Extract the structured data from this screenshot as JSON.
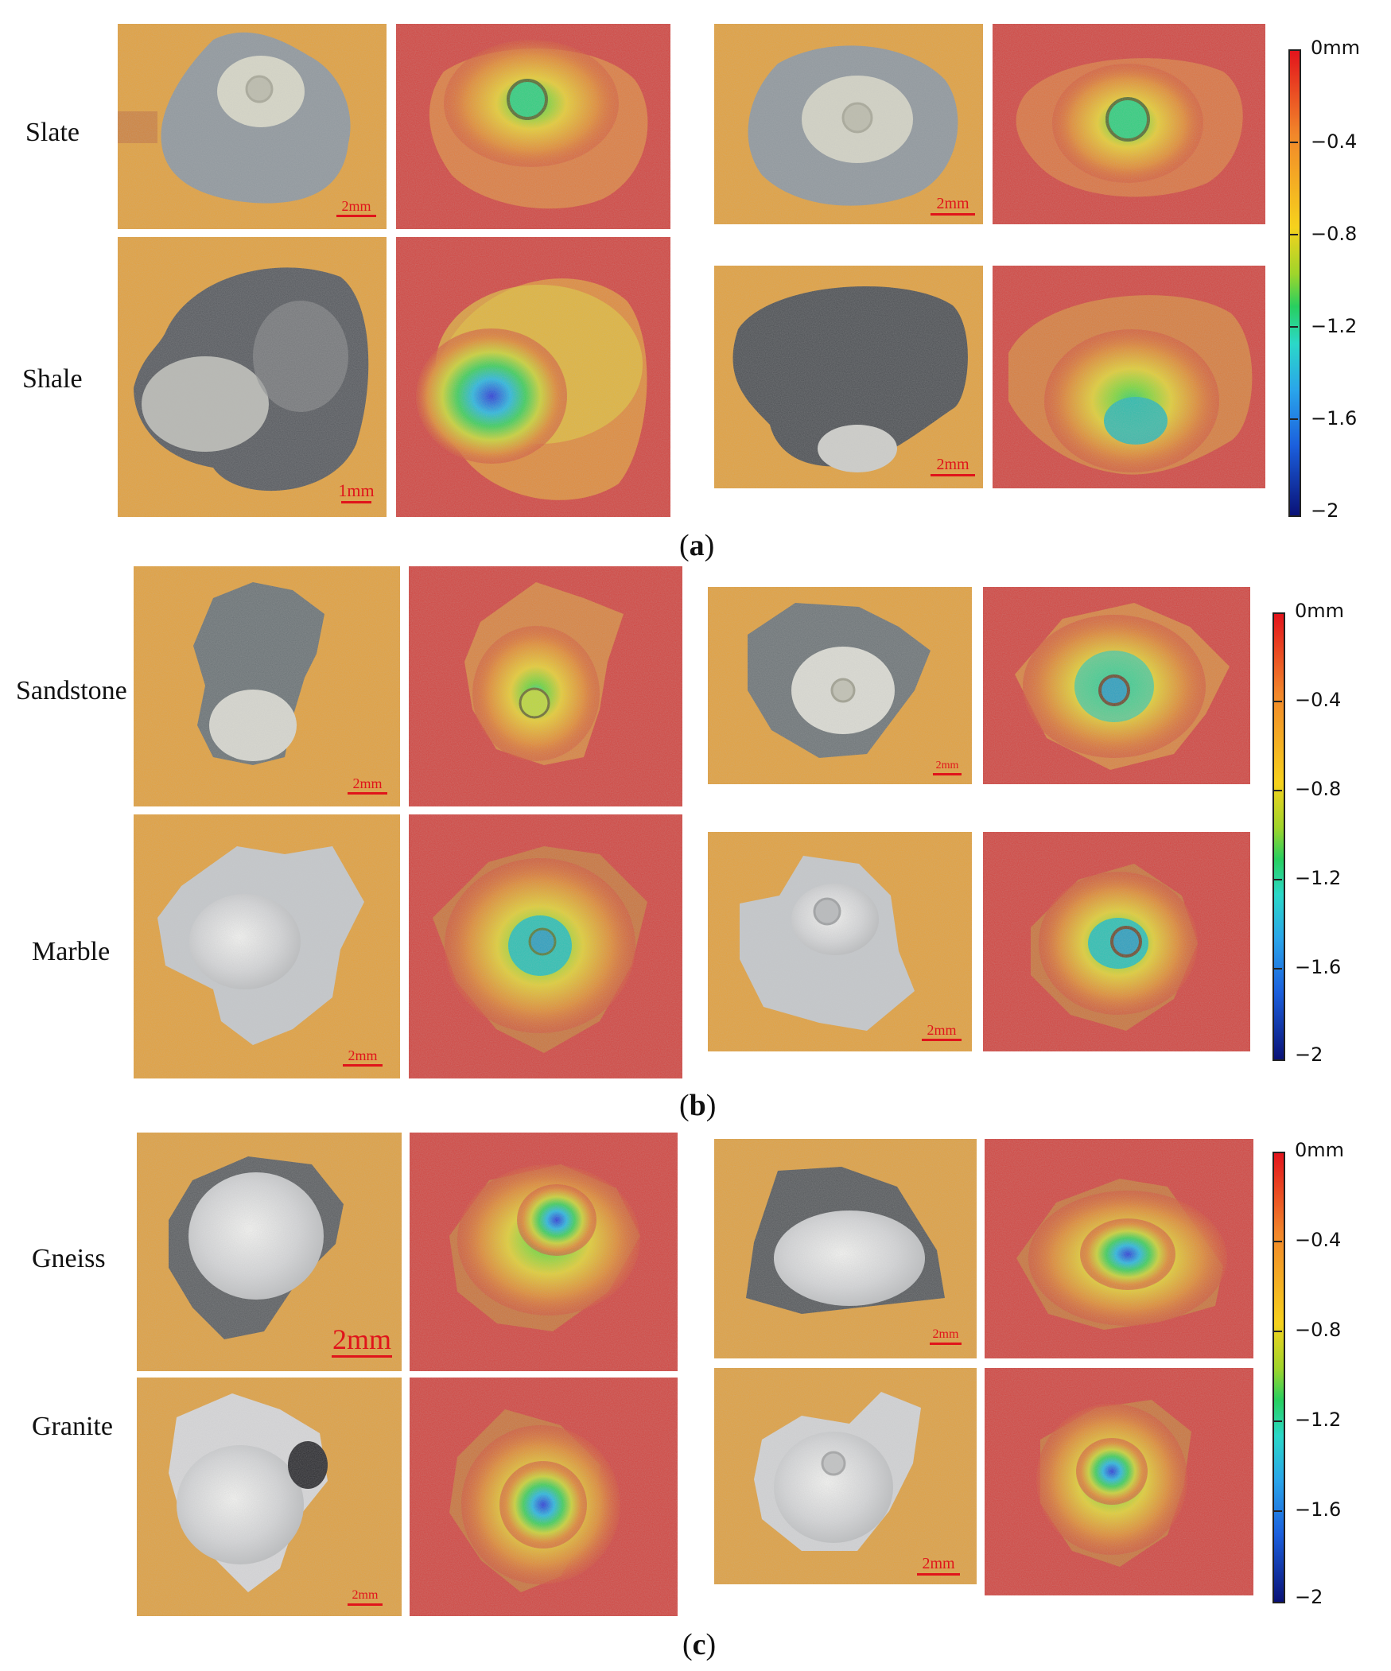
{
  "figure": {
    "row_labels": [
      "Slate",
      "Shale",
      "Sandstone",
      "Marble",
      "Gneiss",
      "Granite"
    ],
    "captions": {
      "a": "a",
      "b": "b",
      "c": "c"
    },
    "scale_bars": {
      "slate_left": "2mm",
      "slate_right": "2mm",
      "shale_left": "1mm",
      "shale_right": "2mm",
      "sandstone_left": "2mm",
      "sandstone_right": "2mm",
      "marble_left": "2mm",
      "marble_right": "2mm",
      "gneiss_left": "2mm",
      "gneiss_right": "2mm",
      "granite_left": "2mm",
      "granite_right": "2mm"
    },
    "colorbar": {
      "unit": "mm",
      "ticks": [
        "0mm",
        "−0.4",
        "−0.8",
        "−1.2",
        "−1.6",
        "−2"
      ],
      "range": [
        -2,
        0
      ],
      "colors": {
        "top": "#e3141c",
        "mid": "#28cf5f",
        "bottom": "#0a1277"
      }
    },
    "panel_colors": {
      "photo_bg": "#e3a03c",
      "map_bg": "#d2443f"
    }
  }
}
